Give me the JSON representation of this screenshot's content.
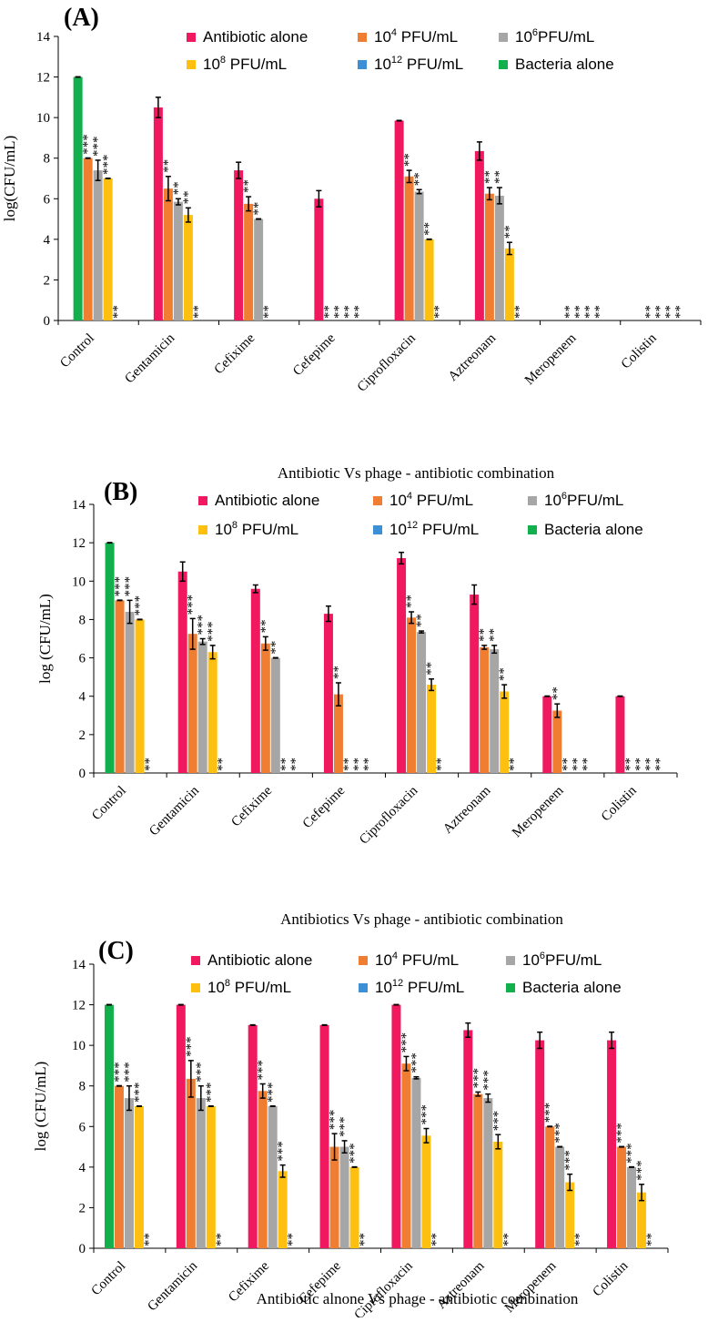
{
  "colors": {
    "antibiotic_alone": "#f0195f",
    "phage_1e4": "#ef7d32",
    "phage_1e6": "#a6a6a6",
    "phage_1e8": "#fdc010",
    "phage_1e12": "#3d8fd6",
    "bacteria_alone": "#12b04d",
    "axis": "#000000"
  },
  "series_text": {
    "antibiotic_alone": "Antibiotic alone",
    "phage_1e4": {
      "base": "10",
      "exp": "4",
      "unit": " PFU/mL"
    },
    "phage_1e6": {
      "base": "10",
      "exp": "6",
      "unit": "PFU/mL"
    },
    "phage_1e8": {
      "base": "10",
      "exp": "8",
      "unit": " PFU/mL"
    },
    "phage_1e12": {
      "base": "10",
      "exp": "12",
      "unit": " PFU/mL"
    },
    "bacteria_alone": "Bacteria alone"
  },
  "chart_data": [
    {
      "type": "bar",
      "panel_label": "(A)",
      "xlabel": "Antibiotic Vs phage - antibiotic combination",
      "ylabel": "log(CFU/mL)",
      "ylim": [
        0,
        14
      ],
      "yticks": [
        "0",
        "2",
        "4",
        "6",
        "8",
        "10",
        "12",
        "14"
      ],
      "categories": [
        "Control",
        "Gentamicin",
        "Cefixime",
        "Cefepime",
        "Ciprofloxacin",
        "Aztreonam",
        "Meropenem",
        "Colistin"
      ],
      "series": [
        {
          "key": "antibiotic_alone",
          "values": [
            12.0,
            10.5,
            7.4,
            6.0,
            9.85,
            8.35,
            0,
            0
          ],
          "errors": [
            0,
            0.5,
            0.4,
            0.4,
            0,
            0.45,
            0,
            0
          ],
          "stars": [
            "",
            "",
            "",
            "",
            "",
            "",
            "",
            ""
          ]
        },
        {
          "key": "phage_1e4",
          "values": [
            8.0,
            6.5,
            5.75,
            0,
            7.1,
            6.25,
            0,
            0
          ],
          "errors": [
            0,
            0.6,
            0.35,
            0,
            0.3,
            0.3,
            0,
            0
          ],
          "stars": [
            "***",
            "**",
            "**",
            "**",
            "**",
            "**",
            "**",
            "**"
          ]
        },
        {
          "key": "phage_1e6",
          "values": [
            7.4,
            5.85,
            5.0,
            0,
            6.35,
            6.15,
            0,
            0
          ],
          "errors": [
            0.5,
            0.15,
            0,
            0,
            0.1,
            0.4,
            0,
            0
          ],
          "stars": [
            "***",
            "**",
            "**",
            "**",
            "**",
            "**",
            "**",
            "**"
          ]
        },
        {
          "key": "phage_1e8",
          "values": [
            7.0,
            5.2,
            0,
            0,
            4.0,
            3.55,
            0,
            0
          ],
          "errors": [
            0,
            0.35,
            0,
            0,
            0,
            0.3,
            0,
            0
          ],
          "stars": [
            "***",
            "**",
            "**",
            "**",
            "**",
            "**",
            "**",
            "**"
          ]
        },
        {
          "key": "phage_1e12",
          "values": [
            0,
            0,
            0,
            0,
            0,
            0,
            0,
            0
          ],
          "errors": [
            0,
            0,
            0,
            0,
            0,
            0,
            0,
            0
          ],
          "stars": [
            "**",
            "**",
            "",
            "**",
            "**",
            "**",
            "**",
            "**"
          ]
        }
      ]
    },
    {
      "type": "bar",
      "panel_label": "(B)",
      "xlabel": "Antibiotics Vs phage - antibiotic combination",
      "ylabel": "log (CFU/mL)",
      "ylim": [
        0,
        14
      ],
      "yticks": [
        "0",
        "2",
        "4",
        "6",
        "8",
        "10",
        "12",
        "14"
      ],
      "categories": [
        "Control",
        "Gentamicin",
        "Cefixime",
        "Cefepime",
        "Ciprofloxacin",
        "Aztreonam",
        "Meropenem",
        "Colistin"
      ],
      "series": [
        {
          "key": "antibiotic_alone",
          "values": [
            12.0,
            10.5,
            9.6,
            8.3,
            11.2,
            9.3,
            4.0,
            4.0
          ],
          "errors": [
            0,
            0.5,
            0.2,
            0.4,
            0.3,
            0.5,
            0,
            0
          ],
          "stars": [
            "",
            "",
            "",
            "",
            "",
            "",
            "",
            ""
          ]
        },
        {
          "key": "phage_1e4",
          "values": [
            9.0,
            7.25,
            6.75,
            4.1,
            8.1,
            6.55,
            3.25,
            0
          ],
          "errors": [
            0,
            0.8,
            0.35,
            0.6,
            0.3,
            0.1,
            0.35,
            0
          ],
          "stars": [
            "***",
            "***",
            "**",
            "**",
            "**",
            "**",
            "**",
            "**"
          ]
        },
        {
          "key": "phage_1e6",
          "values": [
            8.4,
            6.85,
            6.0,
            0,
            7.35,
            6.45,
            0,
            0
          ],
          "errors": [
            0.6,
            0.15,
            0,
            0,
            0.05,
            0.2,
            0,
            0
          ],
          "stars": [
            "***",
            "***",
            "**",
            "**",
            "**",
            "**",
            "**",
            "**"
          ]
        },
        {
          "key": "phage_1e8",
          "values": [
            8.0,
            6.3,
            0,
            0,
            4.6,
            4.25,
            0,
            0
          ],
          "errors": [
            0,
            0.35,
            0,
            0,
            0.3,
            0.35,
            0,
            0
          ],
          "stars": [
            "***",
            "***",
            "**",
            "**",
            "**",
            "**",
            "**",
            "**"
          ]
        },
        {
          "key": "phage_1e12",
          "values": [
            0,
            0,
            0,
            0,
            0,
            0,
            0,
            0
          ],
          "errors": [
            0,
            0,
            0,
            0,
            0,
            0,
            0,
            0
          ],
          "stars": [
            "**",
            "**",
            "**",
            "**",
            "**",
            "**",
            "**",
            "**"
          ]
        }
      ]
    },
    {
      "type": "bar",
      "panel_label": "(C)",
      "xlabel": "Antibiotic alnone Vs phage - antibiotic combination",
      "ylabel": "log (CFU/mL)",
      "ylim": [
        0,
        14
      ],
      "yticks": [
        "0",
        "2",
        "4",
        "6",
        "8",
        "10",
        "12",
        "14"
      ],
      "categories": [
        "Control",
        "Gentamicin",
        "Cefixime",
        "Cefepime",
        "Ciprofloxacin",
        "Aztreonam",
        "Meropenem",
        "Colistin"
      ],
      "series": [
        {
          "key": "antibiotic_alone",
          "values": [
            12.0,
            12.0,
            11.0,
            11.0,
            12.0,
            10.75,
            10.25,
            10.25
          ],
          "errors": [
            0,
            0,
            0,
            0,
            0,
            0.35,
            0.4,
            0.4
          ],
          "stars": [
            "",
            "",
            "",
            "",
            "",
            "",
            "",
            ""
          ]
        },
        {
          "key": "phage_1e4",
          "values": [
            8.0,
            8.35,
            7.75,
            5.0,
            9.1,
            7.6,
            6.0,
            5.0
          ],
          "errors": [
            0,
            0.9,
            0.35,
            0.65,
            0.35,
            0.1,
            0,
            0
          ],
          "stars": [
            "***",
            "***",
            "***",
            "***",
            "***",
            "***",
            "***",
            "***"
          ]
        },
        {
          "key": "phage_1e6",
          "values": [
            7.4,
            7.4,
            7.0,
            5.0,
            8.4,
            7.4,
            5.0,
            4.0
          ],
          "errors": [
            0.6,
            0.6,
            0,
            0.3,
            0.05,
            0.2,
            0,
            0
          ],
          "stars": [
            "***",
            "***",
            "***",
            "***",
            "***",
            "***",
            "***",
            "***"
          ]
        },
        {
          "key": "phage_1e8",
          "values": [
            7.0,
            7.0,
            3.8,
            4.0,
            5.55,
            5.25,
            3.25,
            2.75
          ],
          "errors": [
            0,
            0,
            0.3,
            0,
            0.35,
            0.35,
            0.4,
            0.4
          ],
          "stars": [
            "***",
            "***",
            "***",
            "***",
            "***",
            "***",
            "***",
            "***"
          ]
        },
        {
          "key": "phage_1e12",
          "values": [
            0,
            0,
            0,
            0,
            0,
            0,
            0,
            0
          ],
          "errors": [
            0,
            0,
            0,
            0,
            0,
            0,
            0,
            0
          ],
          "stars": [
            "**",
            "**",
            "**",
            "**",
            "**",
            "**",
            "**",
            "**"
          ]
        }
      ],
      "control_key": "bacteria_alone"
    }
  ]
}
